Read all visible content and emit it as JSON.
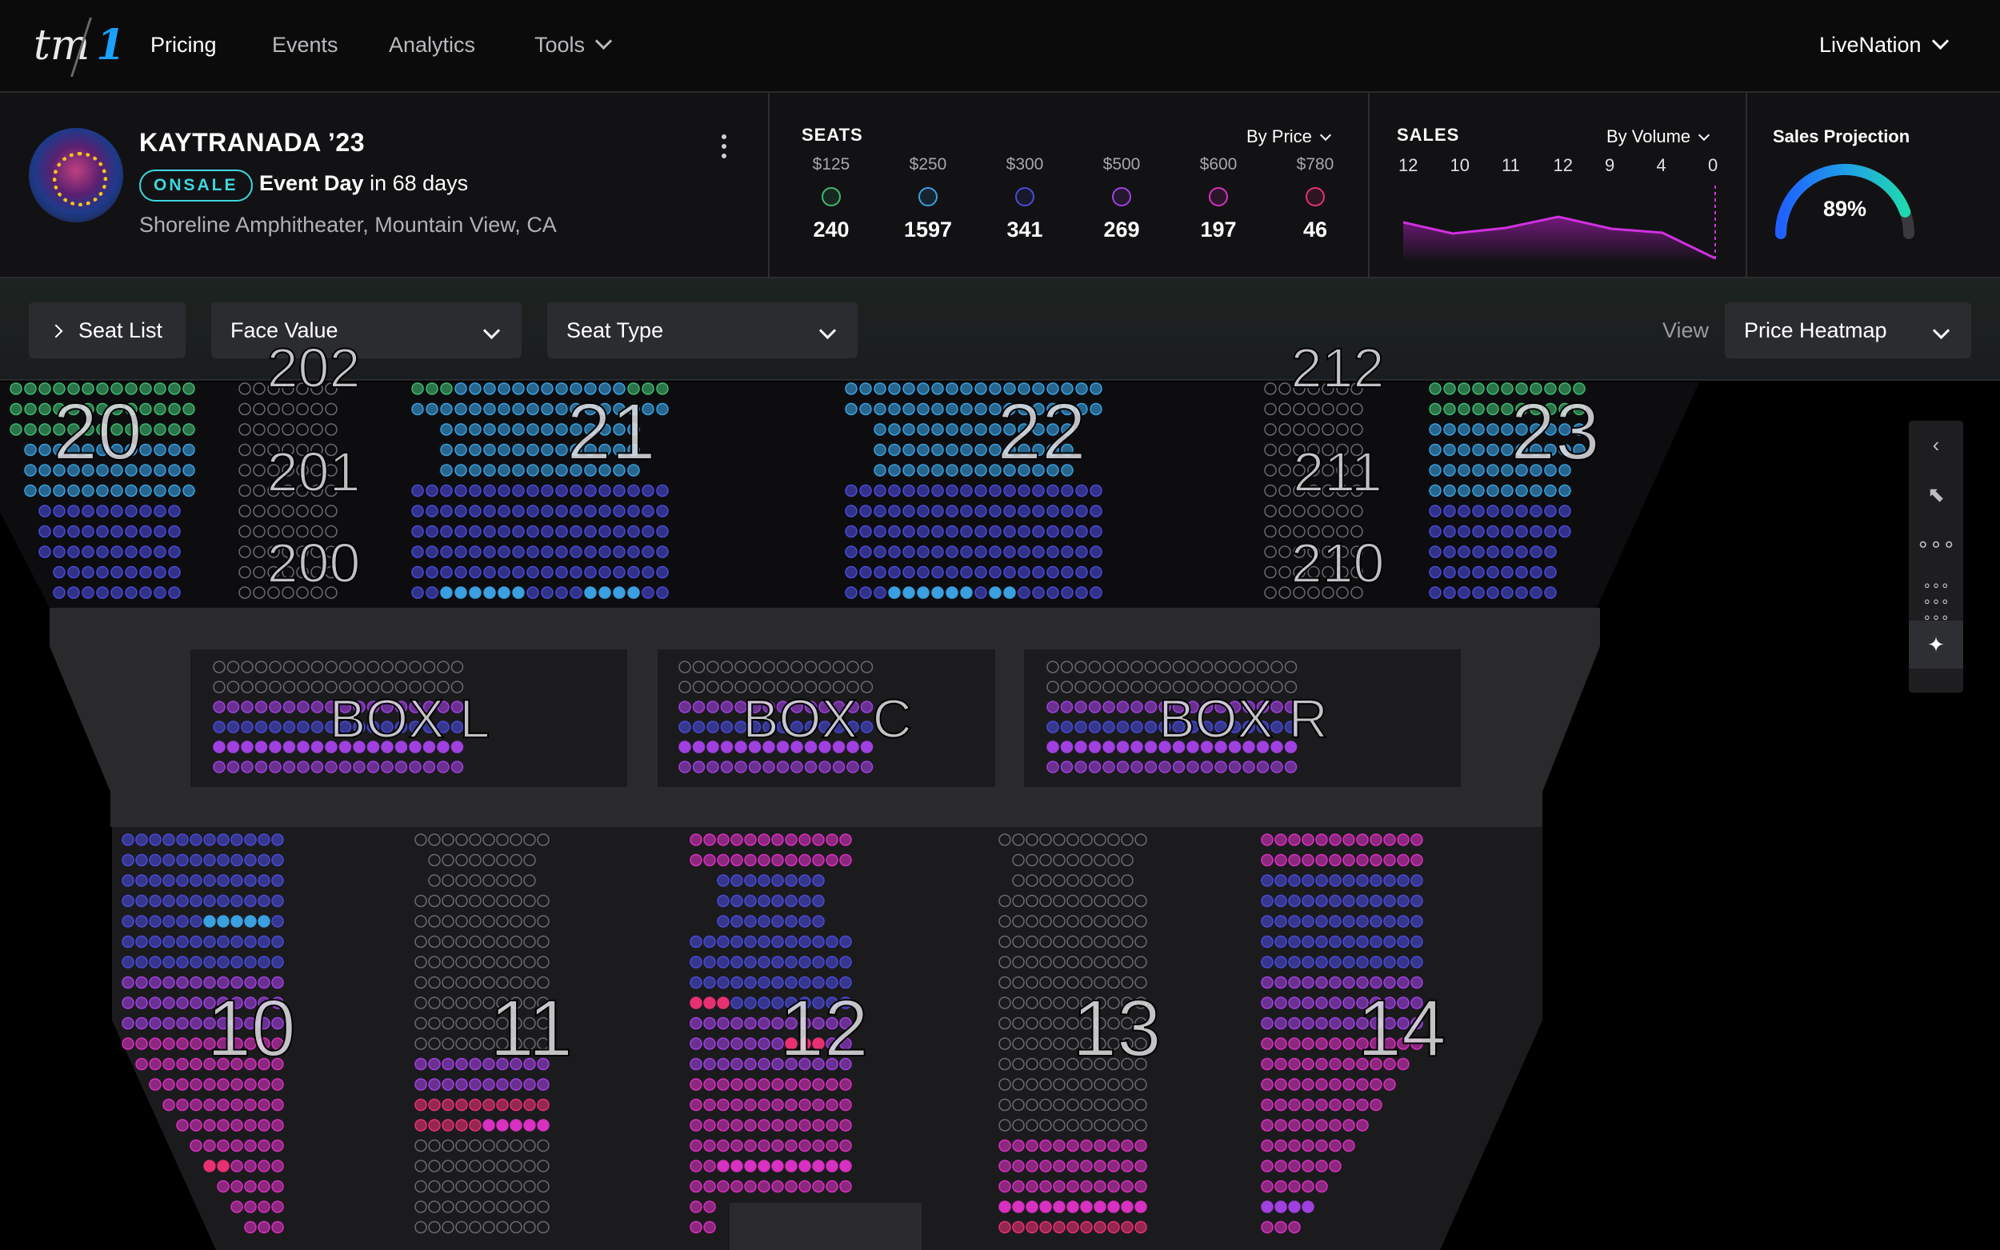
{
  "nav": {
    "logo_text": "tm",
    "logo_num": "1",
    "items": [
      {
        "label": "Pricing",
        "active": true
      },
      {
        "label": "Events",
        "active": false
      },
      {
        "label": "Analytics",
        "active": false
      },
      {
        "label": "Tools",
        "active": false,
        "dropdown": true
      }
    ],
    "account": "LiveNation"
  },
  "event": {
    "title": "KAYTRANADA ’23",
    "status_badge": "ONSALE",
    "event_day_label": "Event Day",
    "event_day_suffix": "in 68 days",
    "venue": "Shoreline Amphitheater, Mountain View, CA"
  },
  "seats": {
    "label": "SEATS",
    "sort": "By Price",
    "tiers": [
      {
        "price": "$125",
        "count": "240",
        "color": "#3fb870"
      },
      {
        "price": "$250",
        "count": "1597",
        "color": "#3aa0e0"
      },
      {
        "price": "$300",
        "count": "341",
        "color": "#4a4ad8"
      },
      {
        "price": "$500",
        "count": "269",
        "color": "#a040e0"
      },
      {
        "price": "$600",
        "count": "197",
        "color": "#d830c0"
      },
      {
        "price": "$780",
        "count": "46",
        "color": "#e83070"
      }
    ]
  },
  "sales": {
    "label": "SALES",
    "sort": "By Volume",
    "columns": [
      "12",
      "10",
      "11",
      "12",
      "9",
      "4",
      "0"
    ]
  },
  "projection": {
    "label": "Sales Projection",
    "value": "89%",
    "fraction": 0.89
  },
  "toolbar": {
    "seat_list": "Seat List",
    "face_value": "Face Value",
    "seat_type": "Seat Type",
    "view_label": "View",
    "view_value": "Price Heatmap"
  },
  "sections": {
    "s20": "20",
    "s202": "202",
    "s201": "201",
    "s200": "200",
    "s21": "21",
    "s22": "22",
    "s212": "212",
    "s211": "211",
    "s210": "210",
    "s23": "23",
    "boxl": "BOX L",
    "boxc": "BOX C",
    "boxr": "BOX R",
    "s10": "10",
    "s11": "11",
    "s12": "12",
    "s13": "13",
    "s14": "14"
  },
  "colors": {
    "green": "#3fb870",
    "lightblue": "#3aa0e0",
    "blue": "#4a4ad8",
    "purple": "#a040e0",
    "magenta": "#d830c0",
    "pink": "#e83070",
    "sold": "#1b1b1d",
    "accent": "#3fd6e0"
  },
  "tools": [
    "collapse-icon",
    "select-icon",
    "row-select-icon",
    "grid-select-icon",
    "sparkle-icon"
  ]
}
